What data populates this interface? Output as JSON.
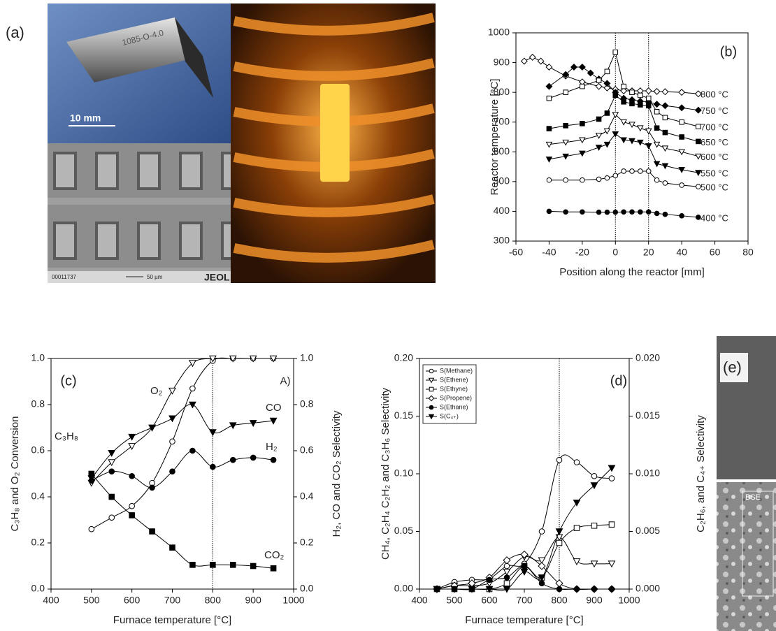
{
  "panels": {
    "a": {
      "label": "(a)",
      "scale_bar": "10 mm",
      "part_marking": "1085-O-4.0",
      "sem_id": "00011737",
      "sem_scale": "50 µm",
      "sem_brand": "JEOL"
    },
    "e": {
      "label": "(e)",
      "detector": "BSE"
    }
  },
  "chart_data": [
    {
      "type": "line",
      "panel_label": "(b)",
      "xlabel": "Position along the reactor [mm]",
      "ylabel": "Reactor temperature [°C]",
      "xlim": [
        -60,
        80
      ],
      "xticks": [
        -60,
        -40,
        -20,
        0,
        20,
        40,
        60,
        80
      ],
      "ylim": [
        300,
        1000
      ],
      "yticks": [
        300,
        400,
        500,
        600,
        700,
        800,
        900,
        1000
      ],
      "vlines": [
        0,
        20
      ],
      "smooth": false,
      "series": [
        {
          "name": "800 °C",
          "color": "#000000",
          "marker": "diamond",
          "filled": false,
          "x": [
            -55,
            -50,
            -45,
            -40,
            -30,
            -20,
            -10,
            -5,
            0,
            5,
            10,
            15,
            20,
            25,
            30,
            40,
            50
          ],
          "values": [
            905,
            918,
            905,
            885,
            855,
            835,
            820,
            815,
            810,
            805,
            805,
            805,
            805,
            803,
            802,
            800,
            795
          ]
        },
        {
          "name": "750 °C",
          "color": "#000000",
          "marker": "diamond",
          "filled": true,
          "x": [
            -40,
            -30,
            -25,
            -20,
            -15,
            -10,
            -5,
            0,
            5,
            10,
            15,
            20,
            25,
            30,
            40,
            50
          ],
          "values": [
            820,
            860,
            885,
            885,
            865,
            845,
            830,
            800,
            780,
            775,
            770,
            768,
            760,
            755,
            748,
            740
          ]
        },
        {
          "name": "700 °C",
          "color": "#000000",
          "marker": "square",
          "filled": false,
          "x": [
            -40,
            -30,
            -20,
            -10,
            -5,
            0,
            5,
            10,
            15,
            20,
            25,
            30,
            40,
            50
          ],
          "values": [
            780,
            800,
            820,
            840,
            870,
            935,
            820,
            800,
            790,
            780,
            735,
            715,
            700,
            685
          ]
        },
        {
          "name": "650 °C",
          "color": "#000000",
          "marker": "square",
          "filled": true,
          "x": [
            -40,
            -30,
            -20,
            -10,
            -5,
            0,
            5,
            10,
            15,
            20,
            25,
            30,
            40,
            50
          ],
          "values": [
            678,
            688,
            695,
            710,
            730,
            790,
            768,
            762,
            758,
            755,
            680,
            665,
            650,
            635
          ]
        },
        {
          "name": "600 °C",
          "color": "#000000",
          "marker": "triangle-down",
          "filled": false,
          "x": [
            -40,
            -30,
            -20,
            -10,
            -5,
            0,
            5,
            10,
            15,
            20,
            25,
            30,
            40,
            50
          ],
          "values": [
            625,
            632,
            640,
            655,
            670,
            725,
            700,
            692,
            680,
            670,
            625,
            612,
            600,
            585
          ]
        },
        {
          "name": "550 °C",
          "color": "#000000",
          "marker": "triangle-down",
          "filled": true,
          "x": [
            -40,
            -30,
            -20,
            -10,
            -5,
            0,
            5,
            10,
            15,
            20,
            25,
            30,
            40,
            50
          ],
          "values": [
            575,
            585,
            595,
            615,
            625,
            660,
            640,
            637,
            632,
            620,
            560,
            553,
            540,
            530
          ]
        },
        {
          "name": "500 °C",
          "color": "#000000",
          "marker": "circle",
          "filled": false,
          "x": [
            -40,
            -30,
            -20,
            -10,
            -5,
            0,
            5,
            10,
            15,
            20,
            25,
            30,
            40,
            50
          ],
          "values": [
            505,
            505,
            505,
            508,
            512,
            520,
            535,
            535,
            535,
            535,
            505,
            495,
            488,
            483
          ]
        },
        {
          "name": "400 °C",
          "color": "#000000",
          "marker": "circle",
          "filled": true,
          "x": [
            -40,
            -30,
            -20,
            -10,
            -5,
            0,
            5,
            10,
            15,
            20,
            25,
            30,
            40,
            50
          ],
          "values": [
            400,
            398,
            398,
            397,
            397,
            397,
            398,
            398,
            398,
            398,
            393,
            390,
            385,
            380
          ]
        }
      ]
    },
    {
      "type": "line",
      "panel_label": "(c)",
      "annotation": "A)",
      "xlabel": "Furnace temperature [°C]",
      "ylabel": "C₃H₈ and O₂ Conversion",
      "y2label": "H₂, CO and CO₂ Selectivity",
      "xlim": [
        400,
        1000
      ],
      "xticks": [
        400,
        500,
        600,
        700,
        800,
        900,
        1000
      ],
      "ylim": [
        0,
        1
      ],
      "yticks": [
        {
          "value": 0,
          "label": "0.0"
        },
        0.2,
        0.4,
        0.6,
        0.8,
        {
          "value": 1,
          "label": "1.0"
        }
      ],
      "y2lim": [
        0,
        1
      ],
      "y2ticks": [
        {
          "value": 0,
          "label": "0.0"
        },
        0.2,
        0.4,
        0.6,
        0.8,
        {
          "value": 1,
          "label": "1.0"
        }
      ],
      "vlines": [
        800
      ],
      "smooth": true,
      "series": [
        {
          "name": "C₃H₈",
          "color": "#000000",
          "marker": "circle",
          "filled": false,
          "x": [
            500,
            550,
            600,
            650,
            700,
            750,
            800,
            850,
            900,
            950
          ],
          "values": [
            0.26,
            0.31,
            0.36,
            0.46,
            0.64,
            0.87,
            0.99,
            1.0,
            1.0,
            1.0
          ]
        },
        {
          "name": "O₂",
          "color": "#000000",
          "marker": "triangle-down",
          "filled": false,
          "x": [
            500,
            550,
            600,
            650,
            700,
            750,
            800,
            850,
            900,
            950
          ],
          "values": [
            0.46,
            0.55,
            0.62,
            0.7,
            0.86,
            0.98,
            1.0,
            1.0,
            1.0,
            1.0
          ]
        },
        {
          "name": "CO",
          "color": "#000000",
          "marker": "triangle-down",
          "filled": true,
          "axis": "y2",
          "x": [
            500,
            550,
            600,
            650,
            700,
            750,
            800,
            850,
            900,
            950
          ],
          "values": [
            0.48,
            0.59,
            0.66,
            0.7,
            0.74,
            0.8,
            0.68,
            0.71,
            0.72,
            0.73
          ]
        },
        {
          "name": "H₂",
          "color": "#000000",
          "marker": "circle",
          "filled": true,
          "axis": "y2",
          "x": [
            500,
            550,
            600,
            650,
            700,
            750,
            800,
            850,
            900,
            950
          ],
          "values": [
            0.47,
            0.51,
            0.49,
            0.44,
            0.51,
            0.6,
            0.53,
            0.56,
            0.57,
            0.56
          ]
        },
        {
          "name": "CO₂",
          "color": "#000000",
          "marker": "square",
          "filled": true,
          "axis": "y2",
          "x": [
            500,
            550,
            600,
            650,
            700,
            750,
            800,
            850,
            900,
            950
          ],
          "values": [
            0.5,
            0.4,
            0.32,
            0.25,
            0.18,
            0.105,
            0.105,
            0.105,
            0.1,
            0.09
          ]
        }
      ]
    },
    {
      "type": "line",
      "panel_label": "(d)",
      "xlabel": "Furnace temperature [°C]",
      "ylabel": "CH₄, C₂H₄ C₂H₂ and  C₃H₆ Selectivity",
      "y2label": "C₂H₆, and C₄₊ Selectivity",
      "xlim": [
        400,
        1000
      ],
      "xticks": [
        400,
        500,
        600,
        700,
        800,
        900,
        1000
      ],
      "ylim": [
        0,
        0.2
      ],
      "yticks": [
        {
          "value": 0,
          "label": "0.00"
        },
        0.05,
        {
          "value": 0.1,
          "label": "0.10"
        },
        0.15,
        {
          "value": 0.2,
          "label": "0.20"
        }
      ],
      "y2lim": [
        0,
        0.02
      ],
      "y2ticks": [
        {
          "value": 0,
          "label": "0.000"
        },
        0.005,
        {
          "value": 0.01,
          "label": "0.010"
        },
        0.015,
        {
          "value": 0.02,
          "label": "0.020"
        }
      ],
      "vlines": [
        800
      ],
      "smooth": true,
      "legend": "upper left",
      "series": [
        {
          "name": "S(Methane)",
          "color": "#000000",
          "marker": "circle",
          "filled": false,
          "x": [
            450,
            500,
            550,
            600,
            650,
            700,
            750,
            800,
            850,
            900,
            950
          ],
          "values": [
            0,
            0.006,
            0.008,
            0.009,
            0.02,
            0.022,
            0.05,
            0.112,
            0.11,
            0.098,
            0.096
          ]
        },
        {
          "name": "S(Ethene)",
          "color": "#000000",
          "marker": "triangle-down",
          "filled": false,
          "x": [
            450,
            500,
            550,
            600,
            650,
            700,
            750,
            800,
            850,
            900,
            950
          ],
          "values": [
            0,
            0.003,
            0.003,
            0.005,
            0.015,
            0.028,
            0.025,
            0.045,
            0.024,
            0.022,
            0.022
          ]
        },
        {
          "name": "S(Ethyne)",
          "color": "#000000",
          "marker": "square",
          "filled": false,
          "x": [
            450,
            500,
            550,
            600,
            650,
            700,
            750,
            800,
            850,
            900,
            950
          ],
          "values": [
            0,
            0,
            0,
            0,
            0.005,
            0.02,
            0.01,
            0.04,
            0.053,
            0.055,
            0.056
          ]
        },
        {
          "name": "S(Propene)",
          "color": "#000000",
          "marker": "diamond",
          "filled": false,
          "x": [
            450,
            500,
            550,
            600,
            650,
            700,
            750,
            800,
            850,
            900,
            950
          ],
          "values": [
            0,
            0.003,
            0.005,
            0.01,
            0.025,
            0.03,
            0.02,
            0.005,
            0,
            0,
            0
          ]
        },
        {
          "name": "S(Ethane)",
          "color": "#000000",
          "marker": "circle",
          "filled": true,
          "axis": "y2",
          "x": [
            450,
            500,
            550,
            600,
            650,
            700,
            750,
            800,
            850,
            900,
            950
          ],
          "values": [
            0,
            0,
            0,
            0.0008,
            0.001,
            0.002,
            0.0005,
            0,
            0,
            0,
            0
          ]
        },
        {
          "name": "S(C₄₊)",
          "color": "#000000",
          "marker": "triangle-down",
          "filled": true,
          "axis": "y2",
          "x": [
            450,
            500,
            550,
            600,
            650,
            700,
            750,
            800,
            850,
            900,
            950
          ],
          "values": [
            0,
            0,
            0,
            0,
            0,
            0.0015,
            0.001,
            0.005,
            0.0075,
            0.009,
            0.0105
          ]
        }
      ]
    }
  ]
}
